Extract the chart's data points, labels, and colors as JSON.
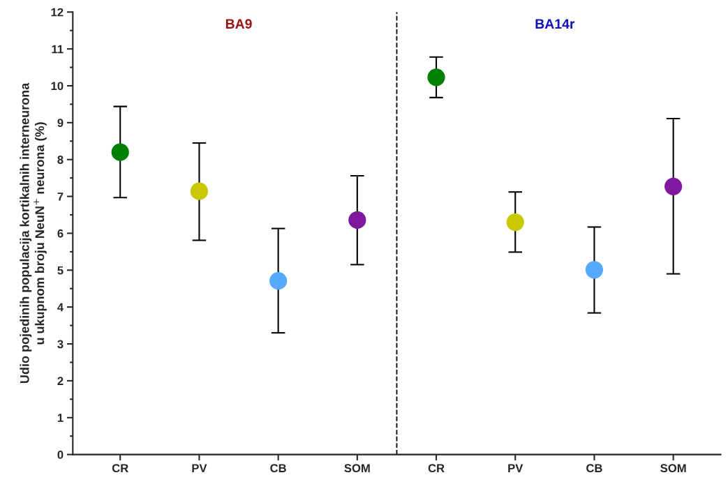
{
  "chart_data": {
    "type": "scatter",
    "ylabel": "Udio pojedinih populacija kortikalnih interneurona\nu ukupnom broju NeuN$^{+}$ neurona (%)",
    "categories": [
      "CR",
      "PV",
      "CB",
      "SOM",
      "CR",
      "PV",
      "CB",
      "SOM"
    ],
    "values": [
      8.2,
      7.14,
      4.71,
      6.36,
      10.23,
      6.3,
      5.01,
      7.27
    ],
    "errors": [
      [
        6.97,
        9.44
      ],
      [
        5.81,
        8.45
      ],
      [
        3.3,
        6.13
      ],
      [
        5.15,
        7.56
      ],
      [
        9.68,
        10.78
      ],
      [
        5.49,
        7.12
      ],
      [
        3.84,
        6.17
      ],
      [
        4.9,
        9.11
      ]
    ],
    "colors": [
      "#008000",
      "#c8c800",
      "#55aaff",
      "#7f1a9f",
      "#008000",
      "#c8c800",
      "#55aaff",
      "#7f1a9f"
    ],
    "ylim": [
      0,
      12
    ],
    "yticks": [
      0,
      1,
      2,
      3,
      4,
      5,
      6,
      7,
      8,
      9,
      10,
      11,
      12
    ],
    "annotations": [
      "BA9",
      "BA14r"
    ],
    "marker": "circle",
    "grid": false,
    "legend": false
  }
}
